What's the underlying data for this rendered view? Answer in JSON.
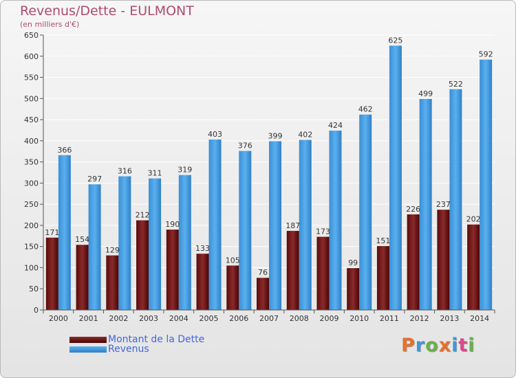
{
  "title": "Revenus/Dette - EULMONT",
  "subtitle": "(en milliers d'€)",
  "logo_text": "Proxiti",
  "logo_colors": [
    "#e8702a",
    "#3a9ad9",
    "#6ab04c",
    "#e8702a",
    "#3a9ad9",
    "#d84a8a",
    "#6ab04c"
  ],
  "chart_data": {
    "type": "bar",
    "categories": [
      "2000",
      "2001",
      "2002",
      "2003",
      "2004",
      "2005",
      "2006",
      "2007",
      "2008",
      "2009",
      "2010",
      "2011",
      "2012",
      "2013",
      "2014"
    ],
    "series": [
      {
        "name": "Montant de la Dette",
        "color": "#7a1a1a",
        "values": [
          171,
          154,
          129,
          212,
          190,
          133,
          105,
          76,
          187,
          173,
          99,
          151,
          226,
          237,
          202
        ]
      },
      {
        "name": "Revenus",
        "color": "#4a9fe0",
        "values": [
          366,
          297,
          316,
          311,
          319,
          403,
          376,
          399,
          402,
          424,
          462,
          625,
          499,
          522,
          592
        ]
      }
    ],
    "ylim": [
      0,
      650
    ],
    "yticks": [
      0,
      50,
      100,
      150,
      200,
      250,
      300,
      350,
      400,
      450,
      500,
      550,
      600,
      650
    ],
    "grid": true,
    "legend_position": "bottom-left"
  }
}
